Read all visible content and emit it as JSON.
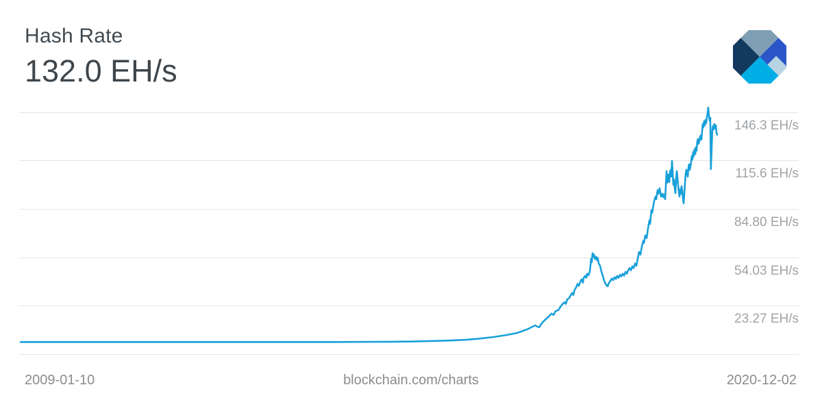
{
  "header": {
    "title": "Hash Rate",
    "current_value": "132.0 EH/s"
  },
  "branding": {
    "logo_name": "blockchain-com-diamond-logo",
    "logo_colors": {
      "slate": "#7e9fb4",
      "navy": "#14395e",
      "royal": "#2b55c8",
      "cyan": "#00aee5",
      "pale": "#b8d3e4"
    }
  },
  "footer": {
    "start_date": "2009-01-10",
    "watermark": "blockchain.com/charts",
    "end_date": "2020-12-02"
  },
  "chart_data": {
    "type": "line",
    "title": "Hash Rate",
    "current_value_label": "132.0 EH/s",
    "unit": "EH/s",
    "x_range": [
      "2009-01-10",
      "2020-12-02"
    ],
    "x_axis_labels": [
      "2009-01-10",
      "2020-12-02"
    ],
    "y_ticks": [
      {
        "value": 146.3,
        "label": "146.3 EH/s"
      },
      {
        "value": 115.6,
        "label": "115.6 EH/s"
      },
      {
        "value": 84.8,
        "label": "84.80 EH/s"
      },
      {
        "value": 54.03,
        "label": "54.03 EH/s"
      },
      {
        "value": 23.27,
        "label": "23.27 EH/s"
      }
    ],
    "ylim_bottom_at_axis_line": -7.71,
    "grid": "horizontal-only",
    "legend": "none",
    "line_color": "#18a0da",
    "grid_color": "#e4e4e4",
    "series": [
      {
        "name": "Hash Rate (EH/s)",
        "x_unit": "fraction_of_x_range",
        "points": [
          [
            0.0,
            0
          ],
          [
            0.05,
            0
          ],
          [
            0.1,
            0
          ],
          [
            0.15,
            0
          ],
          [
            0.2,
            0
          ],
          [
            0.25,
            0
          ],
          [
            0.3,
            0
          ],
          [
            0.35,
            0
          ],
          [
            0.4,
            0
          ],
          [
            0.45,
            0
          ],
          [
            0.5,
            0.1
          ],
          [
            0.53,
            0.2
          ],
          [
            0.561,
            0.3
          ],
          [
            0.61,
            0.9
          ],
          [
            0.639,
            1.4
          ],
          [
            0.659,
            2.2
          ],
          [
            0.679,
            3.2
          ],
          [
            0.698,
            4.5
          ],
          [
            0.713,
            5.8
          ],
          [
            0.728,
            8.2
          ],
          [
            0.7345,
            9.7
          ],
          [
            0.7385,
            10.6
          ],
          [
            0.7414,
            9.9
          ],
          [
            0.7444,
            9.4
          ],
          [
            0.7473,
            11.5
          ],
          [
            0.7522,
            13.9
          ],
          [
            0.7571,
            15.8
          ],
          [
            0.7621,
            18.1
          ],
          [
            0.765,
            17.3
          ],
          [
            0.768,
            19.7
          ],
          [
            0.7719,
            20.3
          ],
          [
            0.7749,
            22.4
          ],
          [
            0.7778,
            24.1
          ],
          [
            0.7808,
            25.3
          ],
          [
            0.7827,
            24.3
          ],
          [
            0.7847,
            27.2
          ],
          [
            0.7876,
            28.0
          ],
          [
            0.7896,
            29.7
          ],
          [
            0.7916,
            31.2
          ],
          [
            0.7935,
            30.0
          ],
          [
            0.7955,
            33.5
          ],
          [
            0.7975,
            34.8
          ],
          [
            0.7994,
            37.0
          ],
          [
            0.8014,
            35.8
          ],
          [
            0.8033,
            38.4
          ],
          [
            0.8053,
            39.9
          ],
          [
            0.8073,
            37.8
          ],
          [
            0.8082,
            40.6
          ],
          [
            0.8102,
            42.1
          ],
          [
            0.8122,
            41.0
          ],
          [
            0.8132,
            43.5
          ],
          [
            0.8151,
            42.5
          ],
          [
            0.8171,
            44.9
          ],
          [
            0.8181,
            48.7
          ],
          [
            0.8191,
            53.1
          ],
          [
            0.8201,
            50.9
          ],
          [
            0.821,
            56.6
          ],
          [
            0.822,
            54.4
          ],
          [
            0.823,
            55.8
          ],
          [
            0.8245,
            53.0
          ],
          [
            0.826,
            54.4
          ],
          [
            0.827,
            52.2
          ],
          [
            0.8284,
            53.7
          ],
          [
            0.8299,
            50.0
          ],
          [
            0.8319,
            48.6
          ],
          [
            0.8338,
            44.9
          ],
          [
            0.8358,
            42.1
          ],
          [
            0.8378,
            39.1
          ],
          [
            0.8397,
            37.0
          ],
          [
            0.8427,
            35.5
          ],
          [
            0.8446,
            37.7
          ],
          [
            0.8466,
            38.9
          ],
          [
            0.8486,
            40.4
          ],
          [
            0.8505,
            39.4
          ],
          [
            0.8525,
            41.3
          ],
          [
            0.8545,
            40.2
          ],
          [
            0.8564,
            42.1
          ],
          [
            0.8584,
            40.9
          ],
          [
            0.8604,
            42.8
          ],
          [
            0.8623,
            41.8
          ],
          [
            0.8643,
            43.5
          ],
          [
            0.8663,
            42.3
          ],
          [
            0.8682,
            44.7
          ],
          [
            0.8702,
            43.5
          ],
          [
            0.8722,
            45.7
          ],
          [
            0.8741,
            47.1
          ],
          [
            0.8761,
            45.7
          ],
          [
            0.8781,
            48.2
          ],
          [
            0.88,
            47.1
          ],
          [
            0.882,
            50.0
          ],
          [
            0.884,
            48.6
          ],
          [
            0.8859,
            53.1
          ],
          [
            0.8879,
            57.4
          ],
          [
            0.8899,
            55.7
          ],
          [
            0.8918,
            60.9
          ],
          [
            0.8938,
            64.4
          ],
          [
            0.8948,
            63.1
          ],
          [
            0.8968,
            67.9
          ],
          [
            0.8987,
            66.2
          ],
          [
            0.9007,
            72.3
          ],
          [
            0.9027,
            77.5
          ],
          [
            0.9037,
            75.3
          ],
          [
            0.9056,
            84.0
          ],
          [
            0.9066,
            82.3
          ],
          [
            0.9086,
            87.5
          ],
          [
            0.9096,
            90.1
          ],
          [
            0.9115,
            92.7
          ],
          [
            0.9125,
            91.0
          ],
          [
            0.9145,
            96.7
          ],
          [
            0.9155,
            94.5
          ],
          [
            0.9174,
            98.0
          ],
          [
            0.9194,
            92.7
          ],
          [
            0.9214,
            94.5
          ],
          [
            0.9223,
            92.3
          ],
          [
            0.9243,
            94.0
          ],
          [
            0.9253,
            91.0
          ],
          [
            0.9263,
            99.3
          ],
          [
            0.9273,
            108.9
          ],
          [
            0.9282,
            101.5
          ],
          [
            0.9292,
            103.2
          ],
          [
            0.9302,
            106.7
          ],
          [
            0.9312,
            101.9
          ],
          [
            0.9322,
            108.0
          ],
          [
            0.9331,
            109.7
          ],
          [
            0.9341,
            105.4
          ],
          [
            0.9351,
            115.4
          ],
          [
            0.9361,
            108.0
          ],
          [
            0.9371,
            100.1
          ],
          [
            0.938,
            103.6
          ],
          [
            0.939,
            98.0
          ],
          [
            0.94,
            94.9
          ],
          [
            0.941,
            103.6
          ],
          [
            0.942,
            108.9
          ],
          [
            0.9429,
            105.4
          ],
          [
            0.9439,
            100.1
          ],
          [
            0.9449,
            95.8
          ],
          [
            0.9459,
            92.7
          ],
          [
            0.9469,
            97.1
          ],
          [
            0.9478,
            94.5
          ],
          [
            0.9488,
            99.3
          ],
          [
            0.9498,
            96.7
          ],
          [
            0.9508,
            91.4
          ],
          [
            0.9518,
            88.4
          ],
          [
            0.9527,
            93.6
          ],
          [
            0.9537,
            101.0
          ],
          [
            0.9547,
            106.7
          ],
          [
            0.9557,
            109.7
          ],
          [
            0.9567,
            108.0
          ],
          [
            0.9577,
            105.4
          ],
          [
            0.9586,
            110.6
          ],
          [
            0.9596,
            113.2
          ],
          [
            0.9606,
            109.7
          ],
          [
            0.9616,
            111.5
          ],
          [
            0.9626,
            115.0
          ],
          [
            0.9635,
            118.5
          ],
          [
            0.9645,
            116.3
          ],
          [
            0.9655,
            121.1
          ],
          [
            0.9665,
            118.5
          ],
          [
            0.9675,
            122.8
          ],
          [
            0.9685,
            119.8
          ],
          [
            0.9694,
            124.1
          ],
          [
            0.9704,
            121.9
          ],
          [
            0.9714,
            127.6
          ],
          [
            0.9724,
            129.3
          ],
          [
            0.9734,
            126.3
          ],
          [
            0.9743,
            128.0
          ],
          [
            0.9753,
            130.7
          ],
          [
            0.9763,
            131.5
          ],
          [
            0.9773,
            128.9
          ],
          [
            0.9783,
            133.7
          ],
          [
            0.9793,
            138.9
          ],
          [
            0.9802,
            136.8
          ],
          [
            0.9812,
            140.7
          ],
          [
            0.9822,
            138.1
          ],
          [
            0.9832,
            141.5
          ],
          [
            0.9842,
            139.4
          ],
          [
            0.9851,
            142.9
          ],
          [
            0.9861,
            145.5
          ],
          [
            0.9871,
            149.4
          ],
          [
            0.9881,
            144.6
          ],
          [
            0.9891,
            141.1
          ],
          [
            0.9901,
            142.9
          ],
          [
            0.991,
            110.2
          ],
          [
            0.993,
            135.0
          ],
          [
            0.994,
            137.6
          ],
          [
            0.995,
            135.4
          ],
          [
            0.996,
            138.9
          ],
          [
            0.997,
            136.3
          ],
          [
            0.998,
            138.1
          ],
          [
            0.999,
            133.3
          ],
          [
            1.0,
            132.0
          ]
        ]
      }
    ]
  }
}
